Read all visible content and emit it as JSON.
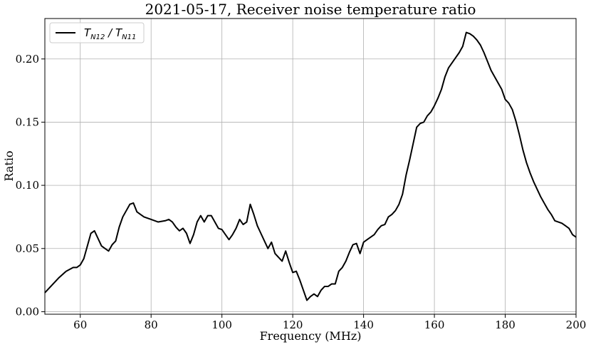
{
  "chart_data": {
    "type": "line",
    "title": "2021-05-17, Receiver noise temperature ratio",
    "xlabel": "Frequency (MHz)",
    "ylabel": "Ratio",
    "xlim": [
      50,
      200
    ],
    "ylim": [
      -0.002,
      0.232
    ],
    "xticks": [
      60,
      80,
      100,
      120,
      140,
      160,
      180,
      200
    ],
    "yticks": [
      0.0,
      0.05,
      0.1,
      0.15,
      0.2
    ],
    "xtick_labels": [
      "60",
      "80",
      "100",
      "120",
      "140",
      "160",
      "180",
      "200"
    ],
    "ytick_labels": [
      "0.00",
      "0.05",
      "0.10",
      "0.15",
      "0.20"
    ],
    "grid": true,
    "legend_position": "top-left",
    "legend": {
      "main": "T",
      "sub1": "N12",
      "sep": " / T",
      "sub2": "N11"
    },
    "series": [
      {
        "name": "T_N12 / T_N11",
        "color": "#000000",
        "x": [
          50,
          52,
          54,
          56,
          58,
          59,
          60,
          61,
          62,
          63,
          64,
          65,
          66,
          67,
          68,
          69,
          70,
          71,
          72,
          73,
          74,
          75,
          76,
          77,
          78,
          80,
          82,
          84,
          85,
          86,
          87,
          88,
          89,
          90,
          91,
          92,
          93,
          94,
          95,
          96,
          97,
          98,
          99,
          100,
          101,
          102,
          103,
          104,
          105,
          106,
          107,
          108,
          109,
          110,
          111,
          112,
          113,
          114,
          115,
          116,
          117,
          118,
          119,
          120,
          121,
          122,
          123,
          124,
          125,
          126,
          127,
          128,
          129,
          130,
          131,
          132,
          133,
          134,
          135,
          136,
          137,
          138,
          139,
          140,
          141,
          142,
          143,
          144,
          145,
          146,
          147,
          148,
          149,
          150,
          151,
          152,
          153,
          154,
          155,
          156,
          157,
          158,
          159,
          160,
          161,
          162,
          163,
          164,
          165,
          166,
          167,
          168,
          169,
          170,
          171,
          172,
          173,
          174,
          175,
          176,
          177,
          178,
          179,
          180,
          181,
          182,
          183,
          184,
          185,
          186,
          187,
          188,
          189,
          190,
          191,
          192,
          193,
          194,
          195,
          196,
          197,
          198,
          199,
          200
        ],
        "values": [
          0.015,
          0.021,
          0.027,
          0.032,
          0.035,
          0.035,
          0.037,
          0.042,
          0.052,
          0.062,
          0.064,
          0.058,
          0.052,
          0.05,
          0.048,
          0.053,
          0.056,
          0.067,
          0.075,
          0.08,
          0.085,
          0.086,
          0.079,
          0.077,
          0.075,
          0.073,
          0.071,
          0.072,
          0.073,
          0.071,
          0.067,
          0.064,
          0.066,
          0.062,
          0.054,
          0.061,
          0.071,
          0.076,
          0.071,
          0.076,
          0.076,
          0.071,
          0.066,
          0.065,
          0.061,
          0.057,
          0.061,
          0.066,
          0.073,
          0.069,
          0.071,
          0.085,
          0.077,
          0.068,
          0.062,
          0.056,
          0.05,
          0.055,
          0.046,
          0.043,
          0.04,
          0.048,
          0.039,
          0.031,
          0.032,
          0.025,
          0.017,
          0.009,
          0.012,
          0.014,
          0.012,
          0.017,
          0.02,
          0.02,
          0.022,
          0.022,
          0.032,
          0.035,
          0.04,
          0.047,
          0.053,
          0.054,
          0.046,
          0.055,
          0.057,
          0.059,
          0.061,
          0.065,
          0.068,
          0.069,
          0.075,
          0.077,
          0.08,
          0.085,
          0.093,
          0.108,
          0.12,
          0.133,
          0.146,
          0.149,
          0.15,
          0.155,
          0.158,
          0.163,
          0.169,
          0.176,
          0.186,
          0.193,
          0.197,
          0.201,
          0.205,
          0.21,
          0.221,
          0.22,
          0.218,
          0.215,
          0.211,
          0.205,
          0.198,
          0.191,
          0.186,
          0.181,
          0.176,
          0.168,
          0.165,
          0.16,
          0.151,
          0.14,
          0.128,
          0.118,
          0.11,
          0.103,
          0.097,
          0.091,
          0.086,
          0.081,
          0.077,
          0.072,
          0.071,
          0.07,
          0.068,
          0.066,
          0.061,
          0.059
        ]
      }
    ]
  }
}
